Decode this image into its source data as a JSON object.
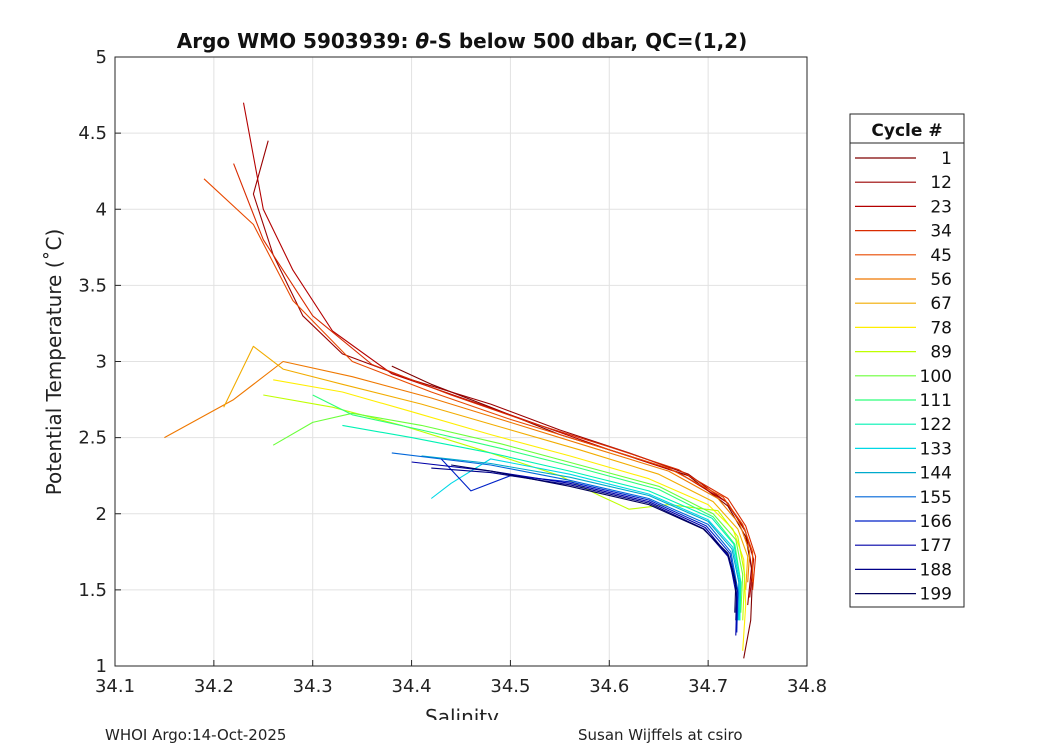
{
  "chart_data": {
    "type": "line",
    "title_prefix": "Argo WMO 5903939: ",
    "title_theta": "θ",
    "title_suffix": "-S below 500 dbar,  QC=(1,2)",
    "xlabel": "Salinity",
    "ylabel": "Potential Temperature (˚C)",
    "xlim": [
      34.1,
      34.8
    ],
    "ylim": [
      1,
      5
    ],
    "xticks": [
      "34.1",
      "34.2",
      "34.3",
      "34.4",
      "34.5",
      "34.6",
      "34.7",
      "34.8"
    ],
    "xtick_values": [
      34.1,
      34.2,
      34.3,
      34.4,
      34.5,
      34.6,
      34.7,
      34.8
    ],
    "yticks": [
      "1",
      "1.5",
      "2",
      "2.5",
      "3",
      "3.5",
      "4",
      "4.5",
      "5"
    ],
    "ytick_values": [
      1,
      1.5,
      2,
      2.5,
      3,
      3.5,
      4,
      4.5,
      5
    ],
    "grid": true,
    "legend_title": "Cycle #",
    "legend_position": "right",
    "legend_entries": [
      {
        "label": "1",
        "color": "#7f0000"
      },
      {
        "label": "12",
        "color": "#9a0000"
      },
      {
        "label": "23",
        "color": "#b40000"
      },
      {
        "label": "34",
        "color": "#d92b00"
      },
      {
        "label": "45",
        "color": "#e94a00"
      },
      {
        "label": "56",
        "color": "#ef7800"
      },
      {
        "label": "67",
        "color": "#f2ac00"
      },
      {
        "label": "78",
        "color": "#ffee00"
      },
      {
        "label": "89",
        "color": "#bfff00"
      },
      {
        "label": "100",
        "color": "#6bff3a"
      },
      {
        "label": "111",
        "color": "#2dff7a"
      },
      {
        "label": "122",
        "color": "#00f2b4"
      },
      {
        "label": "133",
        "color": "#00d8e6"
      },
      {
        "label": "144",
        "color": "#00aacc"
      },
      {
        "label": "155",
        "color": "#0066d9"
      },
      {
        "label": "166",
        "color": "#0022c8"
      },
      {
        "label": "177",
        "color": "#0000a8"
      },
      {
        "label": "188",
        "color": "#000088"
      },
      {
        "label": "199",
        "color": "#00005a"
      }
    ],
    "series": [
      {
        "name": "1",
        "color": "#7f0000",
        "points": [
          [
            34.736,
            1.05
          ],
          [
            34.743,
            1.3
          ],
          [
            34.745,
            1.6
          ],
          [
            34.738,
            1.85
          ],
          [
            34.72,
            2.05
          ],
          [
            34.68,
            2.25
          ],
          [
            34.62,
            2.38
          ],
          [
            34.55,
            2.52
          ],
          [
            34.48,
            2.7
          ],
          [
            34.42,
            2.85
          ],
          [
            34.38,
            2.97
          ]
        ]
      },
      {
        "name": "12",
        "color": "#9a0000",
        "points": [
          [
            34.74,
            1.4
          ],
          [
            34.744,
            1.65
          ],
          [
            34.738,
            1.88
          ],
          [
            34.72,
            2.07
          ],
          [
            34.68,
            2.26
          ],
          [
            34.62,
            2.4
          ],
          [
            34.55,
            2.55
          ],
          [
            34.48,
            2.72
          ],
          [
            34.4,
            2.88
          ],
          [
            34.33,
            3.05
          ],
          [
            34.29,
            3.3
          ],
          [
            34.26,
            3.7
          ],
          [
            34.24,
            4.1
          ],
          [
            34.255,
            4.45
          ]
        ]
      },
      {
        "name": "23",
        "color": "#b40000",
        "points": [
          [
            34.742,
            1.45
          ],
          [
            34.746,
            1.7
          ],
          [
            34.737,
            1.9
          ],
          [
            34.718,
            2.08
          ],
          [
            34.67,
            2.27
          ],
          [
            34.6,
            2.42
          ],
          [
            34.53,
            2.58
          ],
          [
            34.46,
            2.74
          ],
          [
            34.38,
            2.92
          ],
          [
            34.32,
            3.2
          ],
          [
            34.28,
            3.6
          ],
          [
            34.25,
            4.0
          ],
          [
            34.23,
            4.7
          ]
        ]
      },
      {
        "name": "34",
        "color": "#d92b00",
        "points": [
          [
            34.745,
            1.5
          ],
          [
            34.748,
            1.72
          ],
          [
            34.738,
            1.92
          ],
          [
            34.72,
            2.1
          ],
          [
            34.67,
            2.29
          ],
          [
            34.6,
            2.44
          ],
          [
            34.52,
            2.6
          ],
          [
            34.44,
            2.78
          ],
          [
            34.36,
            2.98
          ],
          [
            34.3,
            3.3
          ],
          [
            34.25,
            3.8
          ],
          [
            34.22,
            4.3
          ]
        ]
      },
      {
        "name": "45",
        "color": "#e94a00",
        "points": [
          [
            34.745,
            1.55
          ],
          [
            34.745,
            1.75
          ],
          [
            34.735,
            1.93
          ],
          [
            34.715,
            2.11
          ],
          [
            34.66,
            2.3
          ],
          [
            34.58,
            2.46
          ],
          [
            34.5,
            2.62
          ],
          [
            34.42,
            2.8
          ],
          [
            34.34,
            3.0
          ],
          [
            34.28,
            3.4
          ],
          [
            34.24,
            3.9
          ],
          [
            34.19,
            4.2
          ]
        ]
      },
      {
        "name": "56",
        "color": "#ef7800",
        "points": [
          [
            34.74,
            1.55
          ],
          [
            34.742,
            1.75
          ],
          [
            34.732,
            1.93
          ],
          [
            34.71,
            2.1
          ],
          [
            34.66,
            2.28
          ],
          [
            34.58,
            2.44
          ],
          [
            34.5,
            2.6
          ],
          [
            34.42,
            2.76
          ],
          [
            34.34,
            2.9
          ],
          [
            34.27,
            3.0
          ],
          [
            34.22,
            2.75
          ],
          [
            34.15,
            2.5
          ]
        ]
      },
      {
        "name": "67",
        "color": "#f2ac00",
        "points": [
          [
            34.738,
            1.5
          ],
          [
            34.74,
            1.72
          ],
          [
            34.73,
            1.9
          ],
          [
            34.705,
            2.08
          ],
          [
            34.65,
            2.26
          ],
          [
            34.57,
            2.42
          ],
          [
            34.49,
            2.57
          ],
          [
            34.41,
            2.72
          ],
          [
            34.33,
            2.85
          ],
          [
            34.27,
            2.95
          ],
          [
            34.24,
            3.1
          ],
          [
            34.21,
            2.7
          ]
        ]
      },
      {
        "name": "78",
        "color": "#ffee00",
        "points": [
          [
            34.735,
            1.1
          ],
          [
            34.738,
            1.4
          ],
          [
            34.736,
            1.7
          ],
          [
            34.725,
            1.9
          ],
          [
            34.7,
            2.06
          ],
          [
            34.64,
            2.23
          ],
          [
            34.56,
            2.38
          ],
          [
            34.48,
            2.52
          ],
          [
            34.4,
            2.67
          ],
          [
            34.33,
            2.8
          ],
          [
            34.26,
            2.88
          ]
        ]
      },
      {
        "name": "89",
        "color": "#bfff00",
        "points": [
          [
            34.735,
            1.3
          ],
          [
            34.737,
            1.6
          ],
          [
            34.73,
            1.85
          ],
          [
            34.71,
            2.02
          ],
          [
            34.66,
            2.06
          ],
          [
            34.62,
            2.03
          ],
          [
            34.59,
            2.12
          ],
          [
            34.55,
            2.25
          ],
          [
            34.47,
            2.42
          ],
          [
            34.39,
            2.58
          ],
          [
            34.32,
            2.7
          ],
          [
            34.25,
            2.78
          ]
        ]
      },
      {
        "name": "100",
        "color": "#6bff3a",
        "points": [
          [
            34.733,
            1.35
          ],
          [
            34.735,
            1.6
          ],
          [
            34.728,
            1.83
          ],
          [
            34.705,
            2.0
          ],
          [
            34.65,
            2.18
          ],
          [
            34.57,
            2.32
          ],
          [
            34.49,
            2.46
          ],
          [
            34.41,
            2.58
          ],
          [
            34.34,
            2.66
          ],
          [
            34.3,
            2.6
          ],
          [
            34.26,
            2.45
          ]
        ]
      },
      {
        "name": "111",
        "color": "#2dff7a",
        "points": [
          [
            34.732,
            1.3
          ],
          [
            34.733,
            1.55
          ],
          [
            34.727,
            1.8
          ],
          [
            34.705,
            1.98
          ],
          [
            34.65,
            2.16
          ],
          [
            34.57,
            2.3
          ],
          [
            34.49,
            2.43
          ],
          [
            34.41,
            2.55
          ],
          [
            34.34,
            2.65
          ],
          [
            34.3,
            2.78
          ]
        ]
      },
      {
        "name": "122",
        "color": "#00f2b4",
        "points": [
          [
            34.732,
            1.3
          ],
          [
            34.733,
            1.55
          ],
          [
            34.726,
            1.8
          ],
          [
            34.704,
            1.97
          ],
          [
            34.64,
            2.15
          ],
          [
            34.56,
            2.28
          ],
          [
            34.48,
            2.4
          ],
          [
            34.4,
            2.5
          ],
          [
            34.33,
            2.58
          ]
        ]
      },
      {
        "name": "133",
        "color": "#00d8e6",
        "points": [
          [
            34.731,
            1.3
          ],
          [
            34.732,
            1.55
          ],
          [
            34.725,
            1.78
          ],
          [
            34.7,
            1.96
          ],
          [
            34.64,
            2.13
          ],
          [
            34.56,
            2.26
          ],
          [
            34.48,
            2.36
          ],
          [
            34.44,
            2.2
          ],
          [
            34.42,
            2.1
          ]
        ]
      },
      {
        "name": "144",
        "color": "#00aacc",
        "points": [
          [
            34.73,
            1.3
          ],
          [
            34.731,
            1.55
          ],
          [
            34.724,
            1.77
          ],
          [
            34.7,
            1.95
          ],
          [
            34.64,
            2.12
          ],
          [
            34.56,
            2.24
          ],
          [
            34.48,
            2.33
          ],
          [
            34.41,
            2.38
          ]
        ]
      },
      {
        "name": "155",
        "color": "#0066d9",
        "points": [
          [
            34.729,
            1.25
          ],
          [
            34.73,
            1.5
          ],
          [
            34.723,
            1.75
          ],
          [
            34.7,
            1.93
          ],
          [
            34.64,
            2.1
          ],
          [
            34.56,
            2.22
          ],
          [
            34.48,
            2.32
          ],
          [
            34.38,
            2.4
          ]
        ]
      },
      {
        "name": "166",
        "color": "#0022c8",
        "points": [
          [
            34.729,
            1.22
          ],
          [
            34.73,
            1.48
          ],
          [
            34.722,
            1.74
          ],
          [
            34.698,
            1.92
          ],
          [
            34.64,
            2.09
          ],
          [
            34.56,
            2.21
          ],
          [
            34.5,
            2.25
          ],
          [
            34.46,
            2.15
          ],
          [
            34.43,
            2.36
          ]
        ]
      },
      {
        "name": "177",
        "color": "#0000a8",
        "points": [
          [
            34.728,
            1.2
          ],
          [
            34.729,
            1.45
          ],
          [
            34.721,
            1.72
          ],
          [
            34.697,
            1.91
          ],
          [
            34.64,
            2.08
          ],
          [
            34.56,
            2.2
          ],
          [
            34.48,
            2.28
          ],
          [
            34.4,
            2.34
          ]
        ]
      },
      {
        "name": "188",
        "color": "#000088",
        "points": [
          [
            34.728,
            1.3
          ],
          [
            34.729,
            1.5
          ],
          [
            34.72,
            1.72
          ],
          [
            34.696,
            1.9
          ],
          [
            34.64,
            2.07
          ],
          [
            34.56,
            2.19
          ],
          [
            34.48,
            2.27
          ],
          [
            34.42,
            2.3
          ]
        ]
      },
      {
        "name": "199",
        "color": "#00005a",
        "points": [
          [
            34.727,
            1.35
          ],
          [
            34.728,
            1.55
          ],
          [
            34.72,
            1.74
          ],
          [
            34.695,
            1.9
          ],
          [
            34.64,
            2.06
          ],
          [
            34.56,
            2.18
          ],
          [
            34.48,
            2.28
          ],
          [
            34.44,
            2.32
          ]
        ]
      }
    ]
  },
  "footer": {
    "left": "WHOI Argo:14-Oct-2025",
    "right": "Susan Wijffels at csiro"
  }
}
